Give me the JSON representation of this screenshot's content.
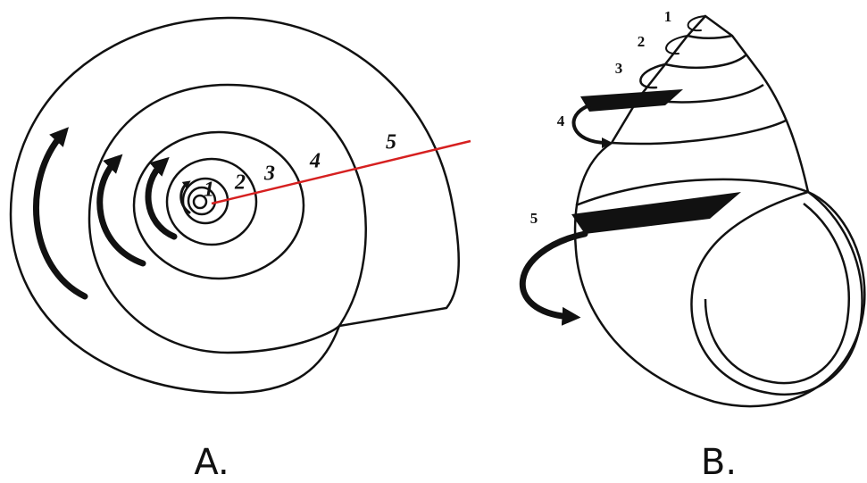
{
  "panels": [
    {
      "label": "A.",
      "whorl_labels": [
        "1",
        "2",
        "3",
        "4",
        "5"
      ]
    },
    {
      "label": "B.",
      "whorl_labels": [
        "1",
        "2",
        "3",
        "4",
        "5"
      ]
    }
  ]
}
